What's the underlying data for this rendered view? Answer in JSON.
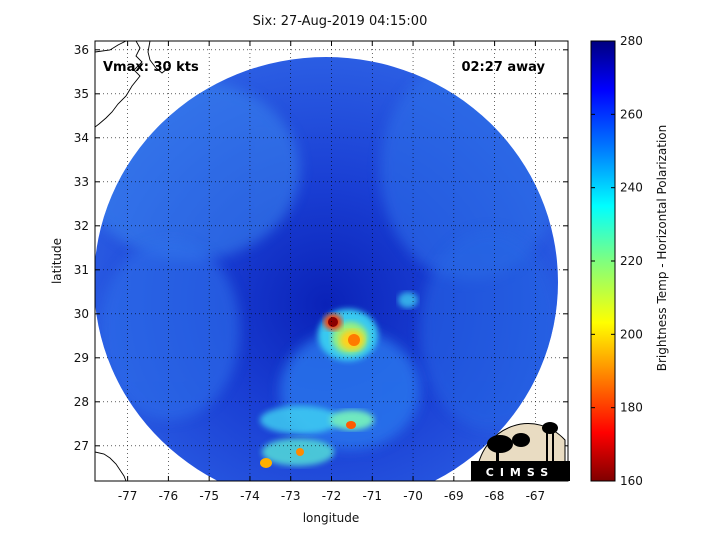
{
  "title": "Six: 27-Aug-2019 04:15:00",
  "overlay": {
    "vmax": "Vmax: 30 kts",
    "time_away": "02:27 away"
  },
  "axes": {
    "xlabel": "longitude",
    "ylabel": "latitude",
    "x_ticks": [
      "-77",
      "-76",
      "-75",
      "-74",
      "-73",
      "-72",
      "-71",
      "-70",
      "-69",
      "-68",
      "-67"
    ],
    "y_ticks": [
      "27",
      "28",
      "29",
      "30",
      "31",
      "32",
      "33",
      "34",
      "35",
      "36"
    ]
  },
  "colorbar": {
    "label": "Brightness Temp - Horizontal Polarization",
    "ticks": [
      "160",
      "180",
      "200",
      "220",
      "240",
      "260",
      "280"
    ],
    "range": [
      160,
      280
    ],
    "colormap": "jet"
  },
  "logo": {
    "text": "CIMSS"
  },
  "chart_data": {
    "type": "heatmap",
    "title": "Six: 27-Aug-2019 04:15:00",
    "xlabel": "longitude",
    "ylabel": "latitude",
    "xlim": [
      -77.8,
      -66.2
    ],
    "ylim": [
      26.2,
      36.2
    ],
    "value_range": [
      160,
      280
    ],
    "grid": true,
    "colors": {
      "cold_core": "#8b0000",
      "background": "#1e4fd8"
    }
  }
}
